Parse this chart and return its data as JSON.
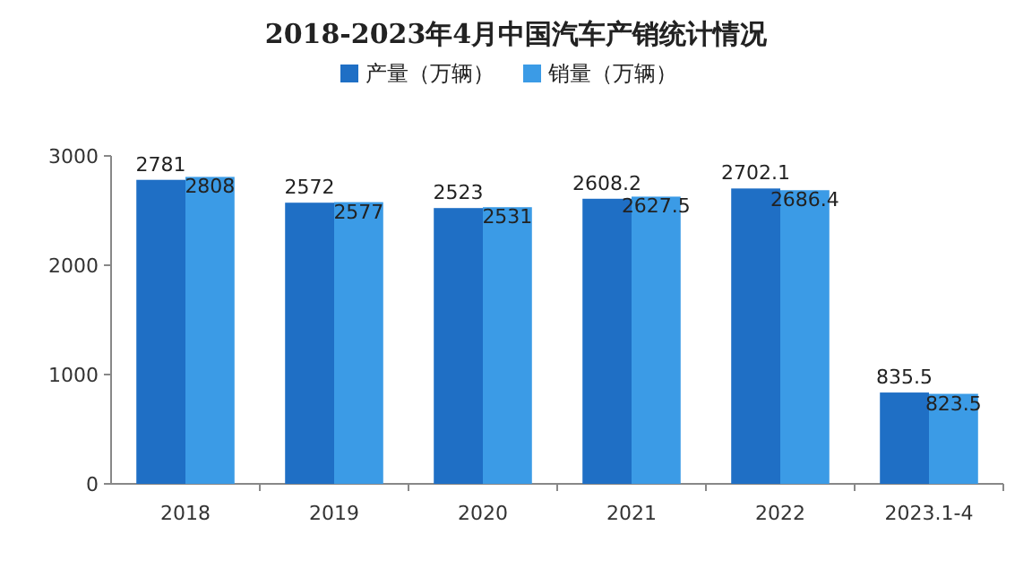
{
  "chart_data": {
    "type": "bar",
    "title": "2018-2023年4月中国汽车产销统计情况",
    "categories": [
      "2018",
      "2019",
      "2020",
      "2021",
      "2022",
      "2023.1-4"
    ],
    "series": [
      {
        "name": "产量（万辆）",
        "color": "#1f6fc5",
        "values": [
          2781,
          2572,
          2523,
          2608.2,
          2702.1,
          835.5
        ]
      },
      {
        "name": "销量（万辆）",
        "color": "#3b9be6",
        "values": [
          2808,
          2577,
          2531,
          2627.5,
          2686.4,
          823.5
        ]
      }
    ],
    "ylim": [
      0,
      3000
    ],
    "yticks": [
      0,
      1000,
      2000,
      3000
    ],
    "grid": false,
    "legend": "top",
    "data_labels": true
  }
}
